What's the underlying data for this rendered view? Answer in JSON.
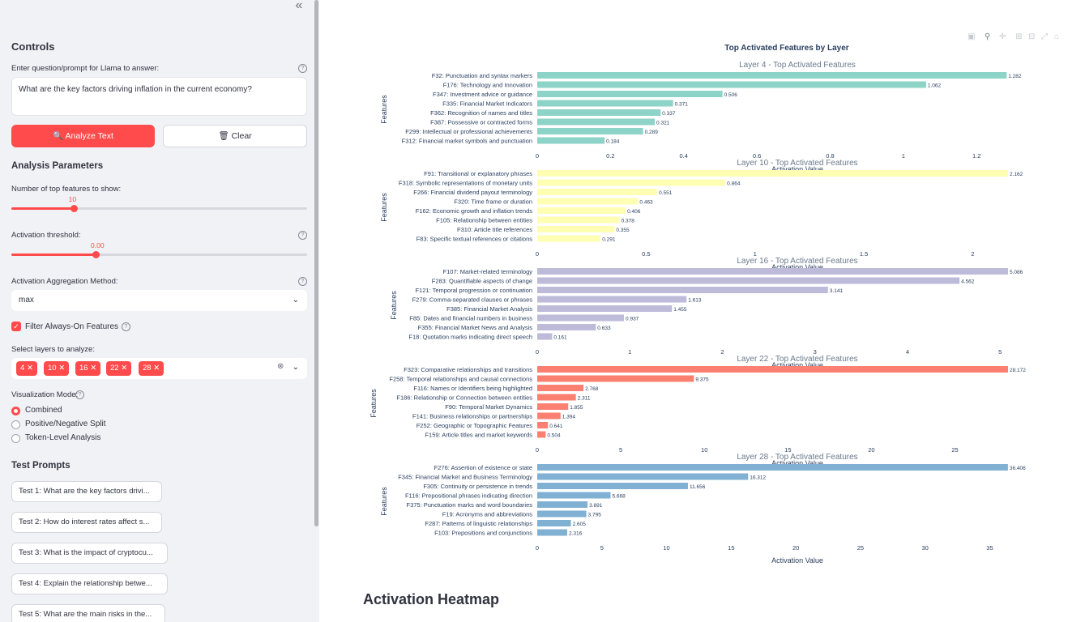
{
  "sidebar": {
    "collapse_icon": "«",
    "controls_heading": "Controls",
    "prompt_label": "Enter question/prompt for Llama to answer:",
    "prompt_value": "What are the key factors driving inflation in the current economy?",
    "analyze_label": "🔍 Analyze Text",
    "clear_label": "🗑 Clear",
    "analysis_heading": "Analysis Parameters",
    "topk_label": "Number of top features to show:",
    "topk_value": "10",
    "topk_fraction": 0.21,
    "threshold_label": "Activation threshold:",
    "threshold_value": "0.00",
    "threshold_fraction": 0.285,
    "agg_label": "Activation Aggregation Method:",
    "agg_value": "max",
    "filter_label": "Filter Always-On Features",
    "layers_label": "Select layers to analyze:",
    "layers": [
      "4",
      "10",
      "16",
      "22",
      "28"
    ],
    "viz_label": "Visualization Mode:",
    "viz_options": [
      "Combined",
      "Positive/Negative Split",
      "Token-Level Analysis"
    ],
    "test_heading": "Test Prompts",
    "tests": [
      "Test 1: What are the key factors drivi...",
      "Test 2: How do interest rates affect s...",
      "Test 3: What is the impact of cryptocu...",
      "Test 4: Explain the relationship betwe...",
      "Test 5: What are the main risks in the..."
    ]
  },
  "main": {
    "heatmap_heading": "Activation Heatmap"
  },
  "chart_data": {
    "type": "bar",
    "title": "Top Activated Features by Layer",
    "ylabel": "Features",
    "xlabel": "Activation Value",
    "subplots": [
      {
        "title": "Layer 4 - Top Activated Features",
        "color": "#8dd3c7",
        "xlim": [
          0,
          1.35
        ],
        "ticks": [
          0,
          0.2,
          0.4,
          0.6,
          0.8,
          1,
          1.2
        ],
        "tick_labels": [
          "0",
          "0.2",
          "0.4",
          "0.6",
          "0.8",
          "1",
          "1.2"
        ],
        "categories": [
          "F32: Punctuation and syntax markers",
          "F176: Technology and Innovation",
          "F347: Investment advice or guidance",
          "F335: Financial Market Indicators",
          "F362: Recognition of names and titles",
          "F387: Possessive or contracted forms",
          "F299: Intellectual or professional achievements",
          "F312: Financial market symbols and punctuation"
        ],
        "values": [
          1.282,
          1.062,
          0.506,
          0.371,
          0.337,
          0.321,
          0.289,
          0.184
        ],
        "labels": [
          "1.282",
          "1.062",
          "0.506",
          "0.371",
          "0.337",
          "0.321",
          "0.289",
          "0.184"
        ]
      },
      {
        "title": "Layer 10 - Top Activated Features",
        "color": "#ffffb3",
        "xlim": [
          0,
          2.27
        ],
        "ticks": [
          0,
          0.5,
          1,
          1.5,
          2
        ],
        "tick_labels": [
          "0",
          "0.5",
          "1",
          "1.5",
          "2"
        ],
        "categories": [
          "F91: Transitional or explanatory phrases",
          "F318: Symbolic representations of monetary units",
          "F266: Financial dividend payout terminology",
          "F320: Time frame or duration",
          "F162: Economic growth and inflation trends",
          "F105: Relationship between entities",
          "F310: Article title references",
          "F83: Specific textual references or citations"
        ],
        "values": [
          2.162,
          0.864,
          0.551,
          0.463,
          0.406,
          0.378,
          0.355,
          0.291
        ],
        "labels": [
          "2.162",
          "0.864",
          "0.551",
          "0.463",
          "0.406",
          "0.378",
          "0.355",
          "0.291"
        ]
      },
      {
        "title": "Layer 16 - Top Activated Features",
        "color": "#bebada",
        "xlim": [
          0,
          5.34
        ],
        "ticks": [
          0,
          1,
          2,
          3,
          4,
          5
        ],
        "tick_labels": [
          "0",
          "1",
          "2",
          "3",
          "4",
          "5"
        ],
        "categories": [
          "F107: Market-related terminology",
          "F283: Quantifiable aspects of change",
          "F121: Temporal progression or continuation",
          "F279: Comma-separated clauses or phrases",
          "F385: Financial Market Analysis",
          "F85: Dates and financial numbers in business",
          "F355: Financial Market News and Analysis",
          "F18: Quotation marks indicating direct speech"
        ],
        "values": [
          5.086,
          4.562,
          3.141,
          1.613,
          1.455,
          0.937,
          0.633,
          0.161
        ],
        "labels": [
          "5.086",
          "4.562",
          "3.141",
          "1.613",
          "1.455",
          "0.937",
          "0.633",
          "0.161"
        ]
      },
      {
        "title": "Layer 22 - Top Activated Features",
        "color": "#fb8072",
        "xlim": [
          0,
          29.58
        ],
        "ticks": [
          0,
          5,
          10,
          15,
          20,
          25
        ],
        "tick_labels": [
          "0",
          "5",
          "10",
          "15",
          "20",
          "25"
        ],
        "categories": [
          "F323: Comparative relationships and transitions",
          "F258: Temporal relationships and causal connections",
          "F116: Names or Identifiers being highlighted",
          "F186: Relationship or Connection between entities",
          "F90: Temporal Market Dynamics",
          "F141: Business relationships or partnerships",
          "F252: Geographic or Topographic Features",
          "F159: Article titles and market keywords"
        ],
        "values": [
          28.172,
          9.375,
          2.768,
          2.311,
          1.855,
          1.394,
          0.641,
          0.504
        ],
        "labels": [
          "28.172",
          "9.375",
          "2.768",
          "2.311",
          "1.855",
          "1.394",
          "0.641",
          "0.504"
        ]
      },
      {
        "title": "Layer 28 - Top Activated Features",
        "color": "#80b1d3",
        "xlim": [
          0,
          38.23
        ],
        "ticks": [
          0,
          5,
          10,
          15,
          20,
          25,
          30,
          35
        ],
        "tick_labels": [
          "0",
          "5",
          "10",
          "15",
          "20",
          "25",
          "30",
          "35"
        ],
        "categories": [
          "F276: Assertion of existence or state",
          "F345: Financial Market and Business Terminology",
          "F305: Continuity or persistence in trends",
          "F116: Prepositional phrases indicating direction",
          "F375: Punctuation marks and word boundaries",
          "F19: Acronyms and abbreviations",
          "F287: Patterns of linguistic relationships",
          "F103: Prepositions and conjunctions"
        ],
        "values": [
          36.406,
          16.312,
          11.656,
          5.668,
          3.891,
          3.795,
          2.605,
          2.316
        ],
        "labels": [
          "36.406",
          "16.312",
          "11.656",
          "5.668",
          "3.891",
          "3.795",
          "2.605",
          "2.316"
        ]
      }
    ]
  }
}
